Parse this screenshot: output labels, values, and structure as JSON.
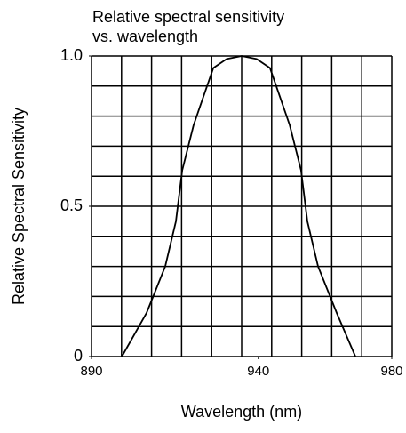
{
  "chart_data": {
    "type": "line",
    "title": [
      "Relative spectral sensitivity",
      "vs. wavelength"
    ],
    "x_label": "Wavelength (nm)",
    "y_label": "Relative Spectral Sensitivity",
    "x": [
      899.1,
      906.5,
      912.1,
      915.3,
      917.2,
      920.6,
      926.5,
      930.5,
      935,
      939.5,
      943.5,
      949.4,
      952.8,
      954.7,
      957.9,
      963.5,
      969.1
    ],
    "values": [
      0,
      0.145,
      0.3,
      0.45,
      0.62,
      0.77,
      0.96,
      0.99,
      1.0,
      0.99,
      0.96,
      0.77,
      0.62,
      0.45,
      0.3,
      0.145,
      0
    ],
    "color": "#000000",
    "xlim": [
      890,
      980
    ],
    "xticks": [
      890,
      940,
      980
    ],
    "ylim": [
      0,
      1
    ],
    "yticks": [
      0,
      0.5,
      {
        "value": 1,
        "label": "1.0"
      }
    ],
    "grid": true
  }
}
